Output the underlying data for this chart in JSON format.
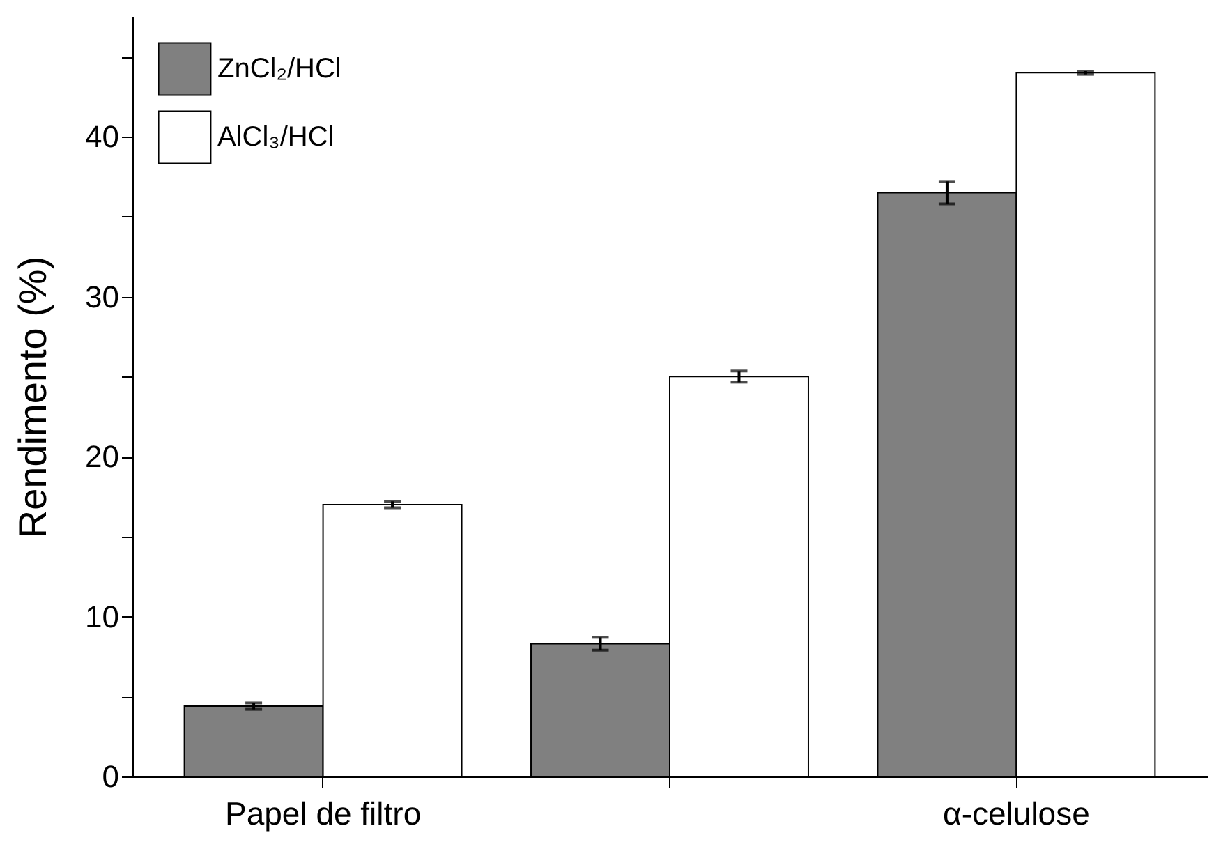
{
  "chart_data": {
    "type": "bar",
    "ylabel": "Rendimento (%)",
    "categories": [
      "Papel de filtro",
      null,
      "α-celulose"
    ],
    "series": [
      {
        "name": "ZnCl₂/HCl",
        "color": "#808080",
        "values": [
          4.4,
          8.3,
          36.5
        ],
        "errors": [
          0.2,
          0.4,
          0.7
        ]
      },
      {
        "name": "AlCl₃/HCl",
        "color": "#ffffff",
        "values": [
          17.0,
          25.0,
          44.0
        ],
        "errors": [
          0.2,
          0.35,
          0.1
        ]
      }
    ],
    "ylim": [
      0,
      47.5
    ],
    "yticks": [
      0,
      {
        "value": 5,
        "label": null
      },
      10,
      {
        "value": 15,
        "label": null
      },
      20,
      {
        "value": 25,
        "label": null
      },
      30,
      {
        "value": 35,
        "label": null
      },
      40,
      {
        "value": 45,
        "label": null
      }
    ],
    "legend": "top left",
    "grid": false
  }
}
